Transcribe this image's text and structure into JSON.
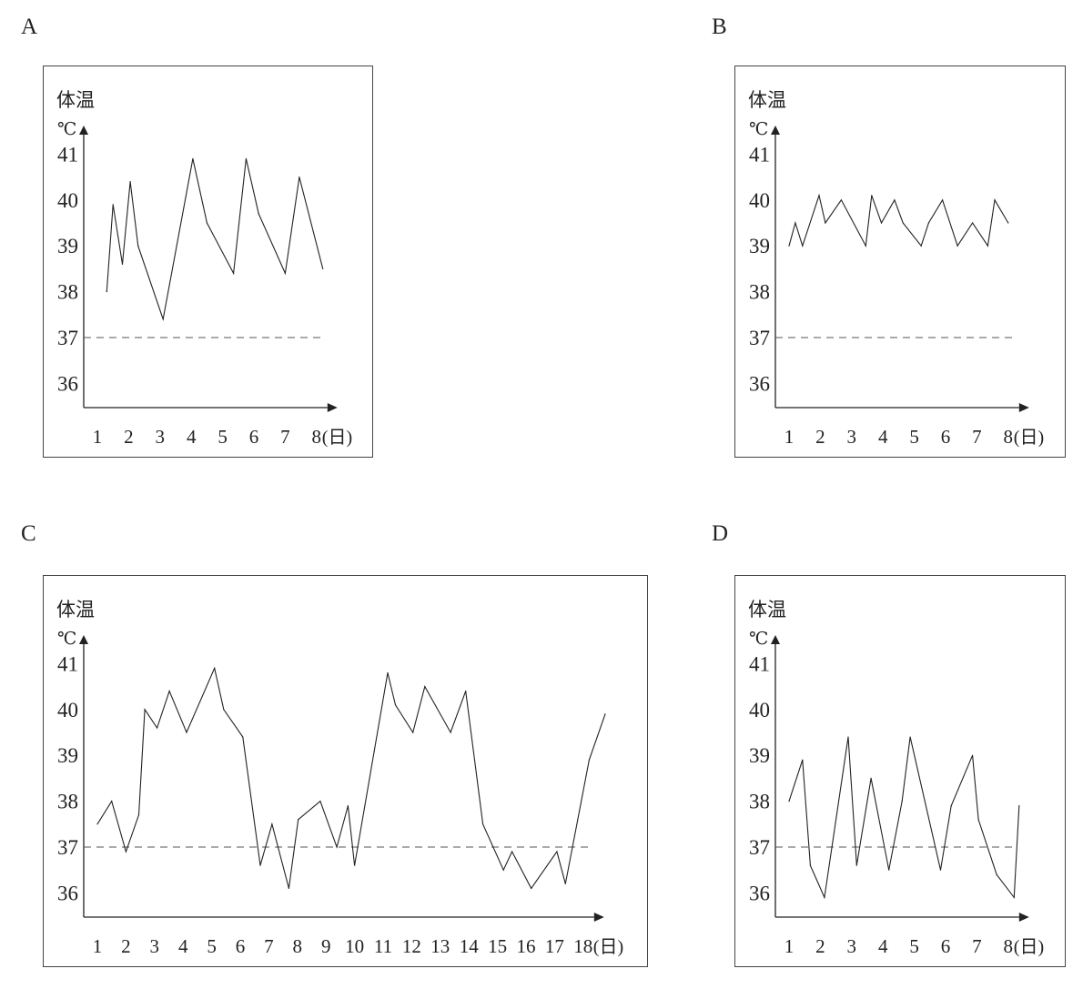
{
  "chart_data": [
    {
      "panel": "A",
      "type": "line",
      "ylabel": "体温",
      "yunit": "℃",
      "xunit": "(日)",
      "y_ticks": [
        "36",
        "37",
        "38",
        "39",
        "40",
        "41"
      ],
      "x_ticks": [
        "1",
        "2",
        "3",
        "4",
        "5",
        "6",
        "7",
        "8"
      ],
      "reference_line": {
        "value": 37,
        "style": "dashed"
      },
      "ylim": [
        35.5,
        41.5
      ],
      "xlim": [
        0.5,
        8.5
      ],
      "grid": false,
      "x": [
        1.3,
        1.5,
        1.8,
        2.05,
        2.3,
        3.1,
        4.05,
        4.5,
        5.35,
        5.75,
        6.15,
        7.0,
        7.45,
        8.2
      ],
      "y": [
        38.0,
        39.9,
        38.6,
        40.4,
        39.0,
        37.4,
        40.9,
        39.5,
        38.4,
        40.9,
        39.7,
        38.4,
        40.5,
        38.5
      ]
    },
    {
      "panel": "B",
      "type": "line",
      "ylabel": "体温",
      "yunit": "℃",
      "xunit": "(日)",
      "y_ticks": [
        "36",
        "37",
        "38",
        "39",
        "40",
        "41"
      ],
      "x_ticks": [
        "1",
        "2",
        "3",
        "4",
        "5",
        "6",
        "7",
        "8"
      ],
      "reference_line": {
        "value": 37,
        "style": "dashed"
      },
      "ylim": [
        35.5,
        41.5
      ],
      "xlim": [
        0.5,
        8.5
      ],
      "grid": false,
      "x": [
        1.0,
        1.2,
        1.43,
        1.96,
        2.16,
        2.67,
        3.45,
        3.64,
        3.95,
        4.37,
        4.64,
        5.22,
        5.46,
        5.9,
        6.38,
        6.86,
        7.35,
        7.57,
        8.0
      ],
      "y": [
        39.0,
        39.5,
        39.0,
        40.1,
        39.5,
        40.0,
        39.0,
        40.1,
        39.5,
        40.0,
        39.5,
        39.0,
        39.5,
        40.0,
        39.0,
        39.5,
        39.0,
        40.0,
        39.5
      ]
    },
    {
      "panel": "C",
      "type": "line",
      "ylabel": "体温",
      "yunit": "℃",
      "xunit": "(日)",
      "y_ticks": [
        "36",
        "37",
        "38",
        "39",
        "40",
        "41"
      ],
      "x_ticks": [
        "1",
        "2",
        "3",
        "4",
        "5",
        "6",
        "7",
        "8",
        "9",
        "10",
        "11",
        "12",
        "13",
        "14",
        "15",
        "16",
        "17",
        "18"
      ],
      "reference_line": {
        "value": 37,
        "style": "dashed"
      },
      "ylim": [
        35.5,
        41.5
      ],
      "xlim": [
        0.5,
        18.5
      ],
      "grid": false,
      "x": [
        1.0,
        1.5,
        2.0,
        2.45,
        2.66,
        3.09,
        3.52,
        4.12,
        5.1,
        5.42,
        6.09,
        6.7,
        7.11,
        7.7,
        8.03,
        8.8,
        9.38,
        9.77,
        10.0,
        11.16,
        11.43,
        12.04,
        12.46,
        13.36,
        13.89,
        14.49,
        15.21,
        15.51,
        16.18,
        17.08,
        17.38,
        18.21,
        18.77
      ],
      "y": [
        37.5,
        38.0,
        36.9,
        37.7,
        40.0,
        39.6,
        40.4,
        39.5,
        40.9,
        40.0,
        39.4,
        36.6,
        37.5,
        36.1,
        37.6,
        38.0,
        37.0,
        37.9,
        36.6,
        40.8,
        40.1,
        39.5,
        40.5,
        39.5,
        40.4,
        37.5,
        36.5,
        36.9,
        36.1,
        36.9,
        36.2,
        38.9,
        39.9
      ]
    },
    {
      "panel": "D",
      "type": "line",
      "ylabel": "体温",
      "yunit": "℃",
      "xunit": "(日)",
      "y_ticks": [
        "36",
        "37",
        "38",
        "39",
        "40",
        "41"
      ],
      "x_ticks": [
        "1",
        "2",
        "3",
        "4",
        "5",
        "6",
        "7",
        "8"
      ],
      "reference_line": {
        "value": 37,
        "style": "dashed"
      },
      "ylim": [
        35.5,
        41.5
      ],
      "xlim": [
        0.5,
        8.5
      ],
      "grid": false,
      "x": [
        1.0,
        1.43,
        1.68,
        2.13,
        2.89,
        3.16,
        3.62,
        4.19,
        4.61,
        4.87,
        5.84,
        6.18,
        6.86,
        7.05,
        7.63,
        8.19,
        8.35
      ],
      "y": [
        38.0,
        38.9,
        36.6,
        35.9,
        39.4,
        36.6,
        38.5,
        36.5,
        38.0,
        39.4,
        36.5,
        37.9,
        39.0,
        37.6,
        36.4,
        35.9,
        37.9
      ]
    }
  ]
}
